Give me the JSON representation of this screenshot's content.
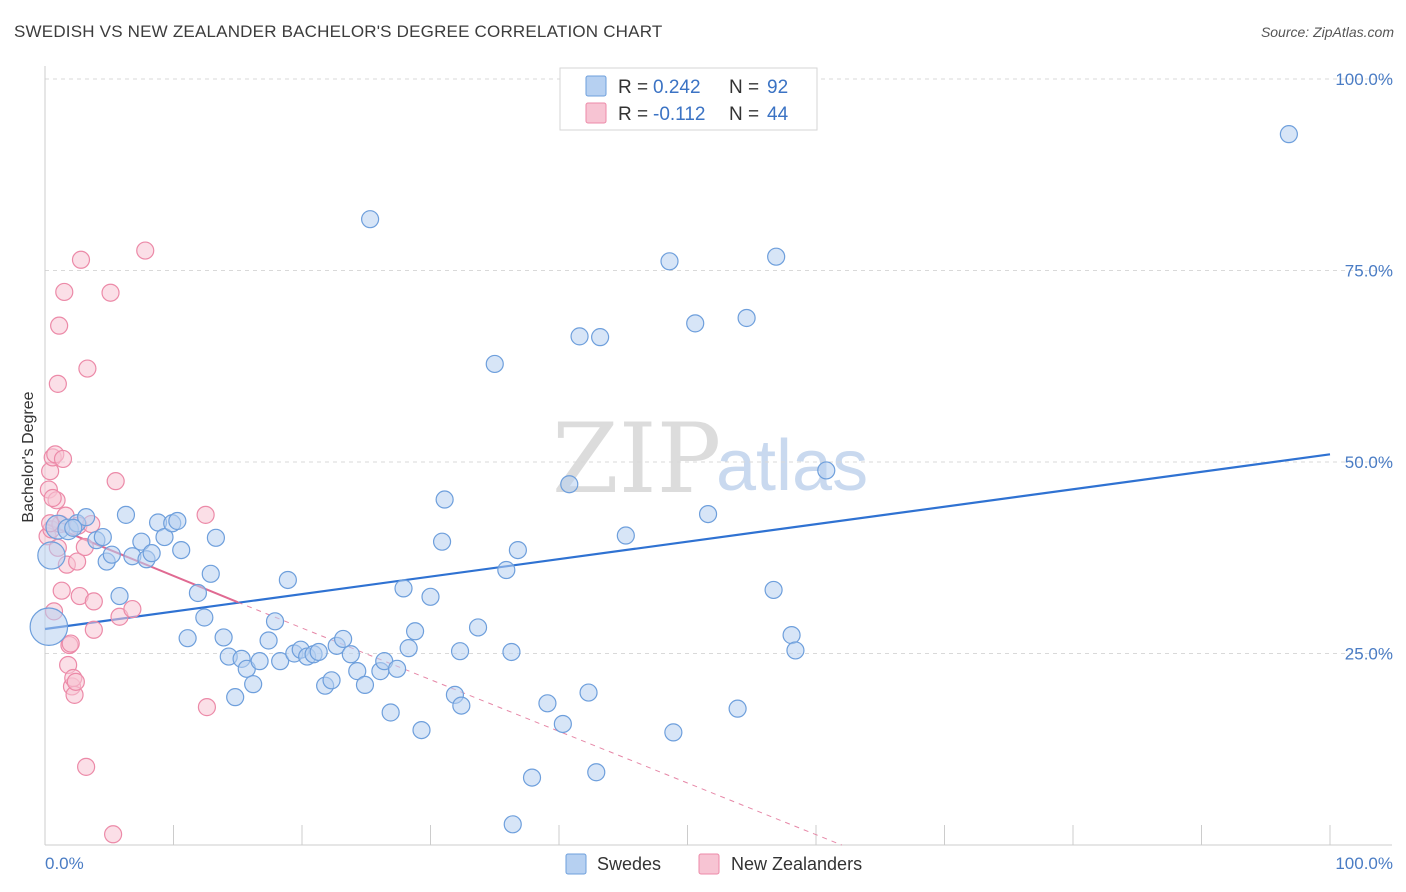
{
  "title": "SWEDISH VS NEW ZEALANDER BACHELOR'S DEGREE CORRELATION CHART",
  "source": "Source: ZipAtlas.com",
  "colors": {
    "blue_fill": "#b6d0f1",
    "blue_stroke": "#6e9fdc",
    "blue_line": "#2f72d2",
    "pink_fill": "#f7c4d3",
    "pink_stroke": "#ec8aa8",
    "pink_line": "#e06a92",
    "tick_text": "#4a7cc4",
    "grid": "#d9d9d9"
  },
  "legend": {
    "row1": {
      "r_label": "R =",
      "r_value": "0.242",
      "n_label": "N =",
      "n_value": "92"
    },
    "row2": {
      "r_label": "R =",
      "r_value": "-0.112",
      "n_label": "N =",
      "n_value": "44"
    }
  },
  "watermark": {
    "zip": "ZIP",
    "atlas": "atlas"
  },
  "chart_data": {
    "type": "scatter",
    "title": "SWEDISH VS NEW ZEALANDER BACHELOR'S DEGREE CORRELATION CHART",
    "xlabel": "",
    "ylabel": "Bachelor's Degree",
    "xlim": [
      0,
      100
    ],
    "ylim": [
      0,
      100
    ],
    "x_tick_labels": [
      "0.0%",
      "100.0%"
    ],
    "y_tick_labels": [
      "25.0%",
      "50.0%",
      "75.0%",
      "100.0%"
    ],
    "y_ticks": [
      25,
      50,
      75,
      100
    ],
    "grid": true,
    "legend_position": "top-center",
    "series": [
      {
        "name": "Swedes",
        "color": "#b6d0f1",
        "r": 0.242,
        "n": 92,
        "trend": {
          "x": [
            0,
            100
          ],
          "y": [
            28.2,
            51.0
          ],
          "style": "solid"
        },
        "points": [
          [
            0.3,
            28.5,
            2.2
          ],
          [
            0.5,
            37.8,
            1.6
          ],
          [
            1.0,
            41.5,
            1.4
          ],
          [
            1.8,
            41.2,
            1.2
          ],
          [
            2.5,
            42.0,
            1
          ],
          [
            3.2,
            42.8,
            1
          ],
          [
            4.0,
            39.8,
            1
          ],
          [
            4.5,
            40.2,
            1
          ],
          [
            4.8,
            37.0,
            1
          ],
          [
            5.2,
            37.9,
            1
          ],
          [
            5.8,
            32.5,
            1
          ],
          [
            6.3,
            43.1,
            1
          ],
          [
            6.8,
            37.7,
            1
          ],
          [
            7.5,
            39.6,
            1
          ],
          [
            7.9,
            37.3,
            1
          ],
          [
            8.3,
            38.1,
            1
          ],
          [
            8.8,
            42.1,
            1
          ],
          [
            9.3,
            40.2,
            1
          ],
          [
            9.9,
            42.0,
            1
          ],
          [
            10.3,
            42.3,
            1
          ],
          [
            10.6,
            38.5,
            1
          ],
          [
            11.1,
            27.0,
            1
          ],
          [
            11.9,
            32.9,
            1
          ],
          [
            12.4,
            29.7,
            1
          ],
          [
            12.9,
            35.4,
            1
          ],
          [
            13.3,
            40.1,
            1
          ],
          [
            13.9,
            27.1,
            1
          ],
          [
            14.3,
            24.6,
            1
          ],
          [
            14.8,
            19.3,
            1
          ],
          [
            15.3,
            24.3,
            1
          ],
          [
            15.7,
            23.0,
            1
          ],
          [
            16.2,
            21.0,
            1
          ],
          [
            16.7,
            24.0,
            1
          ],
          [
            17.4,
            26.7,
            1
          ],
          [
            17.9,
            29.2,
            1
          ],
          [
            18.3,
            24.0,
            1
          ],
          [
            18.9,
            34.6,
            1
          ],
          [
            19.4,
            25.0,
            1
          ],
          [
            19.9,
            25.5,
            1
          ],
          [
            20.4,
            24.6,
            1
          ],
          [
            20.9,
            24.9,
            1
          ],
          [
            21.3,
            25.2,
            1
          ],
          [
            21.8,
            20.8,
            1
          ],
          [
            22.3,
            21.5,
            1
          ],
          [
            22.7,
            26.0,
            1
          ],
          [
            23.2,
            26.9,
            1
          ],
          [
            23.8,
            24.9,
            1
          ],
          [
            24.3,
            22.7,
            1
          ],
          [
            24.9,
            20.9,
            1
          ],
          [
            25.3,
            81.7,
            1
          ],
          [
            26.1,
            22.7,
            1
          ],
          [
            26.4,
            24.0,
            1
          ],
          [
            26.9,
            17.3,
            1
          ],
          [
            27.4,
            23.0,
            1
          ],
          [
            27.9,
            33.5,
            1
          ],
          [
            28.3,
            25.7,
            1
          ],
          [
            28.8,
            27.9,
            1
          ],
          [
            29.3,
            15.0,
            1
          ],
          [
            30.0,
            32.4,
            1
          ],
          [
            30.9,
            39.6,
            1
          ],
          [
            31.1,
            45.1,
            1
          ],
          [
            31.9,
            19.6,
            1
          ],
          [
            32.3,
            25.3,
            1
          ],
          [
            32.4,
            18.2,
            1
          ],
          [
            33.7,
            28.4,
            1
          ],
          [
            35.0,
            62.8,
            1
          ],
          [
            35.9,
            35.9,
            1
          ],
          [
            36.3,
            25.2,
            1
          ],
          [
            36.8,
            38.5,
            1
          ],
          [
            37.9,
            8.8,
            1
          ],
          [
            36.4,
            2.7,
            1
          ],
          [
            39.1,
            18.5,
            1
          ],
          [
            40.3,
            15.8,
            1
          ],
          [
            40.8,
            47.1,
            1
          ],
          [
            41.6,
            66.4,
            1
          ],
          [
            42.3,
            19.9,
            1
          ],
          [
            42.9,
            9.5,
            1
          ],
          [
            43.2,
            66.3,
            1
          ],
          [
            45.2,
            40.4,
            1
          ],
          [
            48.6,
            76.2,
            1
          ],
          [
            48.9,
            14.7,
            1
          ],
          [
            50.6,
            68.1,
            1
          ],
          [
            51.6,
            43.2,
            1
          ],
          [
            53.9,
            17.8,
            1
          ],
          [
            54.6,
            68.8,
            1
          ],
          [
            56.9,
            76.8,
            1
          ],
          [
            56.7,
            33.3,
            1
          ],
          [
            58.1,
            27.4,
            1
          ],
          [
            58.4,
            25.4,
            1
          ],
          [
            60.8,
            48.9,
            1
          ],
          [
            96.8,
            92.8,
            1
          ],
          [
            2.2,
            41.4,
            1
          ]
        ]
      },
      {
        "name": "New Zealanders",
        "color": "#f7c4d3",
        "r": -0.112,
        "n": 44,
        "trend": {
          "x": [
            0,
            15
          ],
          "y": [
            42.0,
            31.7
          ],
          "style": "solid",
          "extended_to": [
            62,
            0
          ]
        },
        "points": [
          [
            0.2,
            40.3,
            1
          ],
          [
            0.3,
            46.4,
            1
          ],
          [
            0.4,
            48.8,
            1
          ],
          [
            0.5,
            41.2,
            1
          ],
          [
            0.6,
            50.6,
            1
          ],
          [
            0.8,
            51.0,
            1
          ],
          [
            0.9,
            45.0,
            1
          ],
          [
            1.0,
            60.2,
            1
          ],
          [
            1.1,
            67.8,
            1
          ],
          [
            1.2,
            41.9,
            1
          ],
          [
            1.3,
            33.2,
            1
          ],
          [
            1.4,
            50.4,
            1
          ],
          [
            1.5,
            72.2,
            1
          ],
          [
            1.6,
            43.0,
            1
          ],
          [
            1.7,
            36.6,
            1
          ],
          [
            1.8,
            23.5,
            1
          ],
          [
            1.9,
            26.1,
            1
          ],
          [
            2.0,
            26.3,
            1
          ],
          [
            2.1,
            20.7,
            1
          ],
          [
            2.2,
            21.8,
            1
          ],
          [
            2.3,
            19.6,
            1
          ],
          [
            2.4,
            21.3,
            1
          ],
          [
            2.5,
            37.0,
            1
          ],
          [
            2.6,
            41.7,
            1
          ],
          [
            2.7,
            32.5,
            1
          ],
          [
            2.8,
            76.4,
            1
          ],
          [
            3.1,
            38.9,
            1
          ],
          [
            3.2,
            10.2,
            1
          ],
          [
            3.3,
            62.2,
            1
          ],
          [
            3.6,
            41.9,
            1
          ],
          [
            3.8,
            31.8,
            1
          ],
          [
            3.8,
            28.1,
            1
          ],
          [
            5.1,
            72.1,
            1
          ],
          [
            5.3,
            1.4,
            1
          ],
          [
            5.5,
            47.5,
            1
          ],
          [
            5.8,
            29.8,
            1
          ],
          [
            6.8,
            30.8,
            1
          ],
          [
            7.8,
            77.6,
            1
          ],
          [
            12.5,
            43.1,
            1
          ],
          [
            12.6,
            18.0,
            1
          ],
          [
            0.7,
            30.5,
            1
          ],
          [
            1.0,
            38.8,
            1
          ],
          [
            0.6,
            45.3,
            1
          ],
          [
            0.4,
            42.0,
            1
          ]
        ]
      }
    ]
  },
  "bottom_legend": {
    "swedes": "Swedes",
    "new_zealanders": "New Zealanders"
  }
}
